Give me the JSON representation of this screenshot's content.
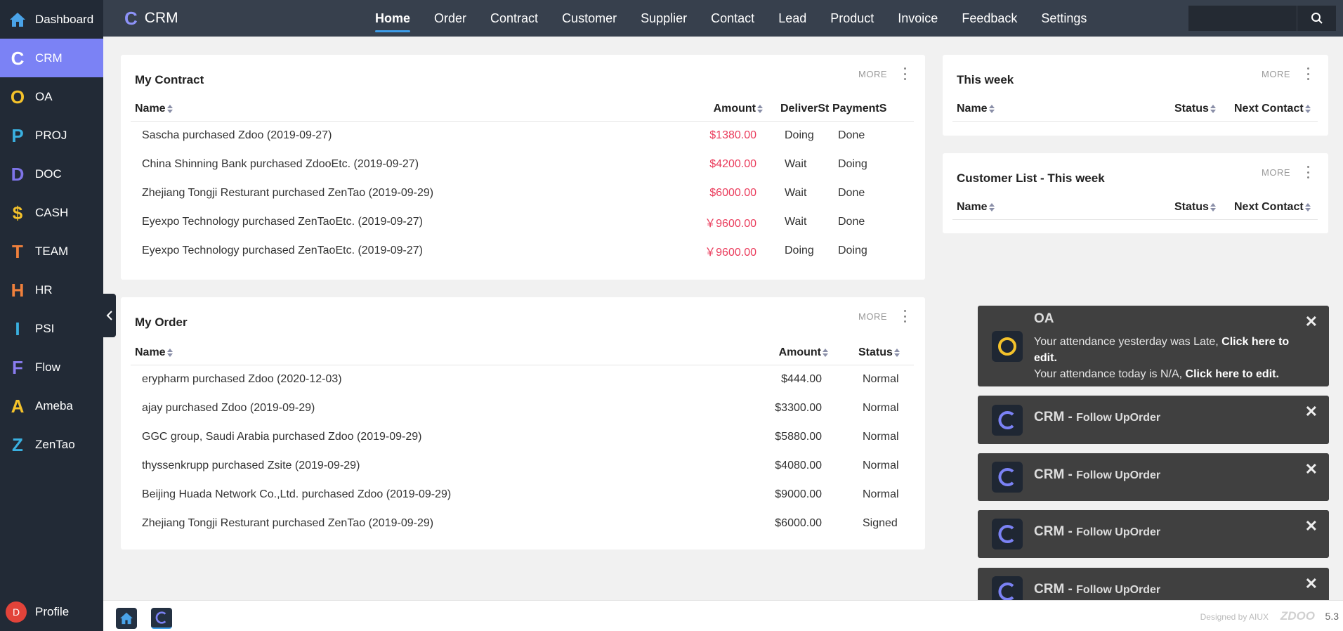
{
  "sidebar": {
    "items": [
      {
        "letter": "",
        "label": "Dashboard",
        "color": "#4aa3e8"
      },
      {
        "letter": "C",
        "label": "CRM",
        "color": "#ffffff"
      },
      {
        "letter": "O",
        "label": "OA",
        "color": "#f4c22b"
      },
      {
        "letter": "P",
        "label": "PROJ",
        "color": "#3ab0e0"
      },
      {
        "letter": "D",
        "label": "DOC",
        "color": "#7e74e8"
      },
      {
        "letter": "$",
        "label": "CASH",
        "color": "#f4c22b"
      },
      {
        "letter": "T",
        "label": "TEAM",
        "color": "#f0803c"
      },
      {
        "letter": "H",
        "label": "HR",
        "color": "#f0803c"
      },
      {
        "letter": "I",
        "label": "PSI",
        "color": "#3ab0e0"
      },
      {
        "letter": "F",
        "label": "Flow",
        "color": "#8a7cf0"
      },
      {
        "letter": "A",
        "label": "Ameba",
        "color": "#f4c22b"
      },
      {
        "letter": "Z",
        "label": "ZenTao",
        "color": "#3ab0e0"
      }
    ],
    "profile": {
      "initial": "D",
      "label": "Profile"
    }
  },
  "topbar": {
    "app_letter": "C",
    "app_title": "CRM",
    "nav": [
      "Home",
      "Order",
      "Contract",
      "Customer",
      "Supplier",
      "Contact",
      "Lead",
      "Product",
      "Invoice",
      "Feedback",
      "Settings"
    ],
    "search_placeholder": ""
  },
  "contract": {
    "title": "My Contract",
    "more": "MORE",
    "headers": [
      "Name",
      "Amount",
      "DeliverSta",
      "PaymentS"
    ],
    "rows": [
      [
        "Sascha purchased Zdoo (2019-09-27)",
        "$1380.00",
        "Doing",
        "Done"
      ],
      [
        "China Shinning Bank purchased ZdooEtc. (2019-09-27)",
        "$4200.00",
        "Wait",
        "Doing"
      ],
      [
        "Zhejiang Tongji Resturant purchased ZenTao (2019-09-29)",
        "$6000.00",
        "Wait",
        "Done"
      ],
      [
        "Eyexpo Technology purchased ZenTaoEtc. (2019-09-27)",
        "￥9600.00",
        "Wait",
        "Done"
      ],
      [
        "Eyexpo Technology purchased ZenTaoEtc. (2019-09-27)",
        "￥9600.00",
        "Doing",
        "Doing"
      ]
    ]
  },
  "order": {
    "title": "My Order",
    "more": "MORE",
    "headers": [
      "Name",
      "Amount",
      "Status"
    ],
    "rows": [
      [
        "erypharm purchased Zdoo (2020-12-03)",
        "$444.00",
        "Normal"
      ],
      [
        "ajay purchased Zdoo (2019-09-29)",
        "$3300.00",
        "Normal"
      ],
      [
        "GGC group, Saudi Arabia purchased Zdoo (2019-09-29)",
        "$5880.00",
        "Normal"
      ],
      [
        "thyssenkrupp purchased Zsite (2019-09-29)",
        "$4080.00",
        "Normal"
      ],
      [
        "Beijing Huada Network Co.,Ltd. purchased Zdoo (2019-09-29)",
        "$9000.00",
        "Normal"
      ],
      [
        "Zhejiang Tongji Resturant purchased ZenTao (2019-09-29)",
        "$6000.00",
        "Signed"
      ]
    ]
  },
  "thisweek": {
    "title": "This week",
    "more": "MORE",
    "headers": [
      "Name",
      "Status",
      "Next Contact"
    ]
  },
  "customerlist": {
    "title": "Customer List - This week",
    "more": "MORE",
    "headers": [
      "Name",
      "Status",
      "Next Contact"
    ]
  },
  "notices": {
    "oa": {
      "title": "OA",
      "line1_text": "Your attendance yesterday was Late, ",
      "line1_link": "Click here to edit.",
      "line2_text": "Your attendance today is N/A, ",
      "line2_link": "Click here to edit."
    },
    "crm": [
      {
        "title": "CRM - ",
        "sub": "Follow UpOrder"
      },
      {
        "title": "CRM - ",
        "sub": "Follow UpOrder"
      },
      {
        "title": "CRM - ",
        "sub": "Follow UpOrder"
      },
      {
        "title": "CRM - ",
        "sub": "Follow UpOrder"
      }
    ]
  },
  "footer": {
    "designed": "Designed by AIUX",
    "brand": "ZDOO",
    "version": "5.3"
  }
}
